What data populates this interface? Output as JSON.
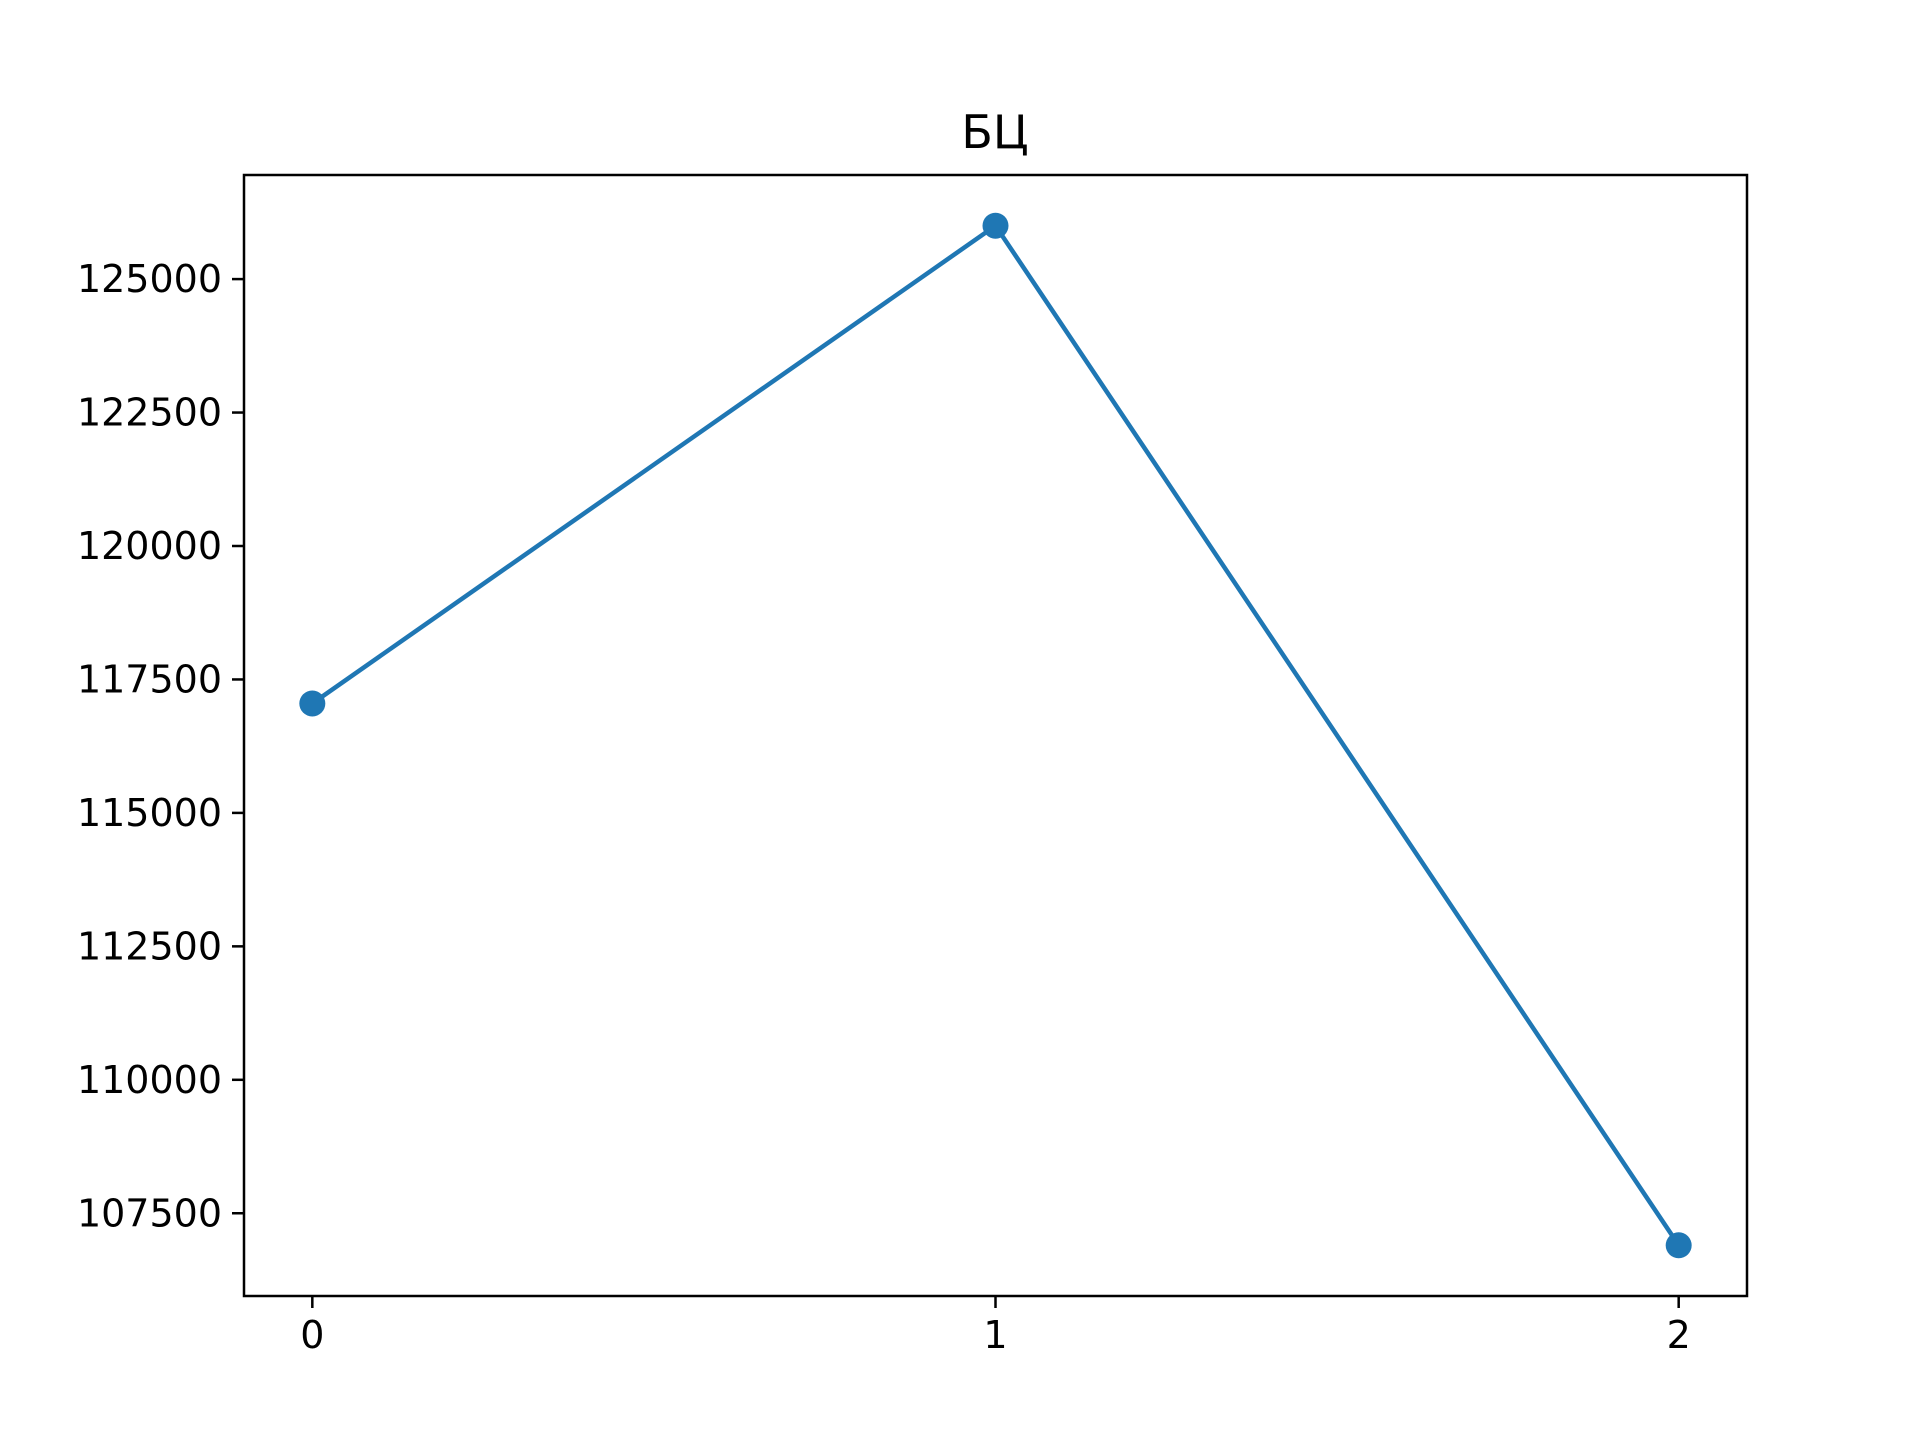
{
  "chart_data": {
    "type": "line",
    "title": "БЦ",
    "xlabel": "",
    "ylabel": "",
    "x": [
      0,
      1,
      2
    ],
    "series": [
      {
        "values": [
          117050,
          126000,
          106900
        ],
        "color": "#1f77b4",
        "marker": "circle"
      }
    ],
    "xticks": [
      0,
      1,
      2
    ],
    "xtick_labels": [
      "0",
      "1",
      "2"
    ],
    "yticks": [
      107500,
      110000,
      112500,
      115000,
      117500,
      120000,
      122500,
      125000
    ],
    "ytick_labels": [
      "107500",
      "110000",
      "112500",
      "115000",
      "117500",
      "120000",
      "122500",
      "125000"
    ],
    "xlim": [
      -0.1,
      2.1
    ],
    "ylim": [
      105950,
      126950
    ],
    "grid": false,
    "legend": "none"
  }
}
